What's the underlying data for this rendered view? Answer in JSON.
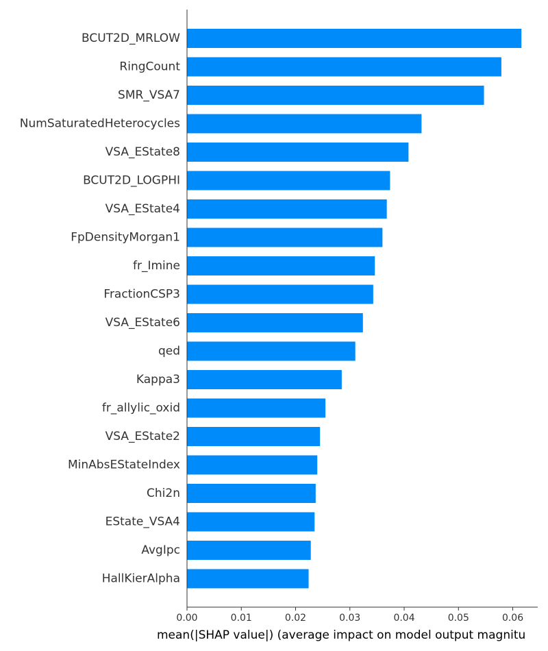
{
  "chart_data": {
    "type": "bar",
    "orientation": "horizontal",
    "categories": [
      "BCUT2D_MRLOW",
      "RingCount",
      "SMR_VSA7",
      "NumSaturatedHeterocycles",
      "VSA_EState8",
      "BCUT2D_LOGPHI",
      "VSA_EState4",
      "FpDensityMorgan1",
      "fr_Imine",
      "FractionCSP3",
      "VSA_EState6",
      "qed",
      "Kappa3",
      "fr_allylic_oxid",
      "VSA_EState2",
      "MinAbsEStateIndex",
      "Chi2n",
      "EState_VSA4",
      "AvgIpc",
      "HallKierAlpha"
    ],
    "values": [
      0.0616,
      0.0579,
      0.0547,
      0.0432,
      0.0408,
      0.0374,
      0.0368,
      0.036,
      0.0346,
      0.0343,
      0.0324,
      0.031,
      0.0285,
      0.0255,
      0.0245,
      0.024,
      0.0237,
      0.0235,
      0.0228,
      0.0224
    ],
    "title": "",
    "xlabel": "mean(|SHAP value|) (average impact on model output magnitu",
    "ylabel": "",
    "xlim": [
      0,
      0.0646
    ],
    "xticks": [
      0.0,
      0.01,
      0.02,
      0.03,
      0.04,
      0.05,
      0.06
    ],
    "xtick_labels": [
      "0.00",
      "0.01",
      "0.02",
      "0.03",
      "0.04",
      "0.05",
      "0.06"
    ],
    "grid": false,
    "bar_color": "#008bfb"
  }
}
